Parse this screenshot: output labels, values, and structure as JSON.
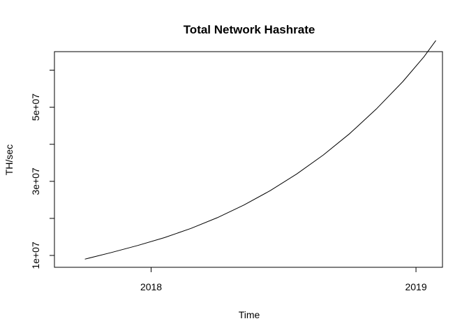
{
  "chart_data": {
    "type": "line",
    "title": "Total Network Hashrate",
    "xlabel": "Time",
    "ylabel": "TH/sec",
    "x_ticks": [
      {
        "value": 2018,
        "label": "2018"
      },
      {
        "value": 2019,
        "label": "2019"
      }
    ],
    "y_ticks": [
      {
        "value": 10000000,
        "label": "1e+07",
        "labeled": true
      },
      {
        "value": 20000000,
        "label": "",
        "labeled": false
      },
      {
        "value": 30000000,
        "label": "3e+07",
        "labeled": true
      },
      {
        "value": 40000000,
        "label": "",
        "labeled": false
      },
      {
        "value": 50000000,
        "label": "5e+07",
        "labeled": true
      },
      {
        "value": 60000000,
        "label": "",
        "labeled": false
      }
    ],
    "xlim": [
      2017.635,
      2019.1
    ],
    "ylim": [
      6800000,
      65000000
    ],
    "grid": false,
    "series": [
      {
        "name": "",
        "color": "#000000",
        "x": [
          2017.75,
          2017.85,
          2017.95,
          2018.05,
          2018.15,
          2018.25,
          2018.35,
          2018.45,
          2018.55,
          2018.65,
          2018.75,
          2018.85,
          2018.95,
          2019.03,
          2019.075
        ],
        "y": [
          9000000,
          10800000,
          12700000,
          14800000,
          17300000,
          20200000,
          23600000,
          27500000,
          32000000,
          37100000,
          42900000,
          49500000,
          56900000,
          63600000,
          68000000
        ]
      }
    ]
  },
  "labels": {
    "title": "Total Network Hashrate",
    "xlabel": "Time",
    "ylabel": "TH/sec"
  }
}
